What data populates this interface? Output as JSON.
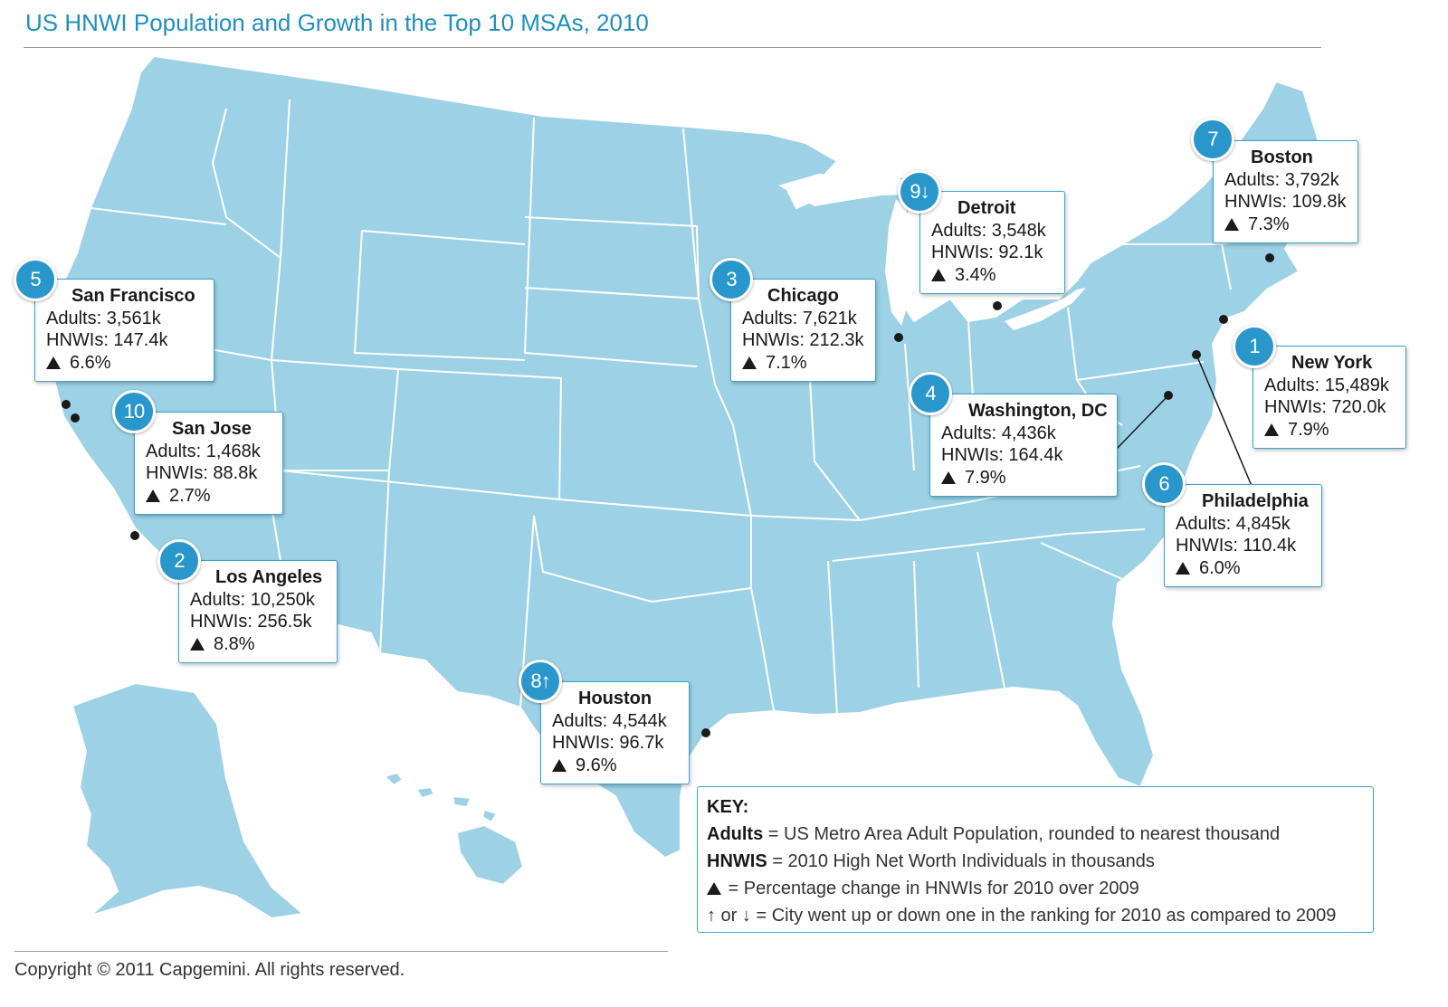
{
  "title": "US HNWI Population and Growth in the Top 10 MSAs, 2010",
  "colors": {
    "accent": "#1f8fc0",
    "land": "#9dd2e6",
    "badge": "#2a97cc",
    "border": "#3aa3cf"
  },
  "cities": [
    {
      "rank": "1",
      "name": "New York",
      "adults": "Adults:  15,489k",
      "hnwis": "HNWIs: 720.0k",
      "change": "7.9%"
    },
    {
      "rank": "2",
      "name": "Los Angeles",
      "adults": "Adults:  10,250k",
      "hnwis": "HNWIs: 256.5k",
      "change": "8.8%"
    },
    {
      "rank": "3",
      "name": "Chicago",
      "adults": "Adults:  7,621k",
      "hnwis": "HNWIs: 212.3k",
      "change": "7.1%"
    },
    {
      "rank": "4",
      "name": "Washington, DC",
      "adults": "Adults:  4,436k",
      "hnwis": "HNWIs: 164.4k",
      "change": "7.9%"
    },
    {
      "rank": "5",
      "name": "San Francisco",
      "adults": "Adults:  3,561k",
      "hnwis": "HNWIs: 147.4k",
      "change": "6.6%"
    },
    {
      "rank": "6",
      "name": "Philadelphia",
      "adults": "Adults:  4,845k",
      "hnwis": "HNWIs: 110.4k",
      "change": "6.0%"
    },
    {
      "rank": "7",
      "name": "Boston",
      "adults": "Adults:  3,792k",
      "hnwis": "HNWIs: 109.8k",
      "change": "7.3%"
    },
    {
      "rank": "8↑",
      "name": "Houston",
      "adults": "Adults:  4,544k",
      "hnwis": "HNWIs: 96.7k",
      "change": "9.6%"
    },
    {
      "rank": "9↓",
      "name": "Detroit",
      "adults": "Adults:  3,548k",
      "hnwis": "HNWIs: 92.1k",
      "change": "3.4%"
    },
    {
      "rank": "10",
      "name": "San Jose",
      "adults": "Adults:  1,468k",
      "hnwis": "HNWIs: 88.8k",
      "change": "2.7%"
    }
  ],
  "key": {
    "title": "KEY:",
    "adults_term": "Adults",
    "adults_def": " = US Metro Area Adult Population, rounded to nearest thousand",
    "hnwis_term": "HNWIS",
    "hnwis_def": " = 2010 High Net Worth Individuals in thousands",
    "change_def": " = Percentage change in HNWIs for 2010 over 2009",
    "rank_arrows": "↑ or ↓",
    "rank_def": " = City went up or down one in the ranking for 2010 as compared to 2009"
  },
  "copyright": "Copyright © 2011 Capgemini. All rights reserved."
}
